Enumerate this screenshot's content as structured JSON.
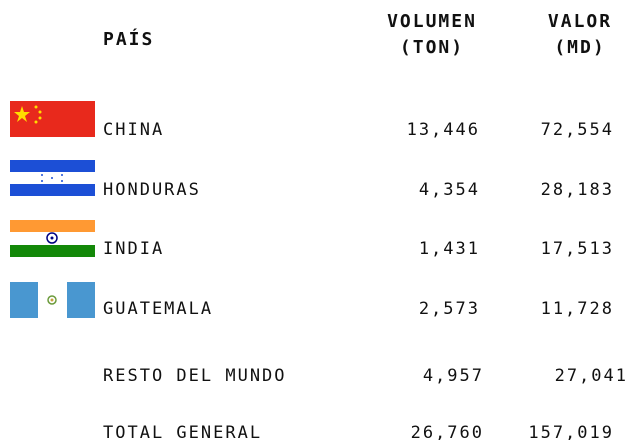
{
  "header": {
    "country": "PAÍS",
    "volume": [
      "VOLUMEN",
      "(TON)"
    ],
    "value": [
      "VALOR",
      "(MD)"
    ]
  },
  "table": {
    "rows": [
      [
        "CHINA",
        "13,446",
        "72,554"
      ],
      [
        "HONDURAS",
        "4,354",
        "28,183"
      ],
      [
        "INDIA",
        "1,431",
        "17,513"
      ],
      [
        "GUATEMALA",
        "2,573",
        "11,728"
      ],
      [
        "RESTO DEL MUNDO",
        "4,957",
        "27,041"
      ],
      [
        "TOTAL GENERAL",
        "26,760",
        "157,019"
      ]
    ]
  }
}
